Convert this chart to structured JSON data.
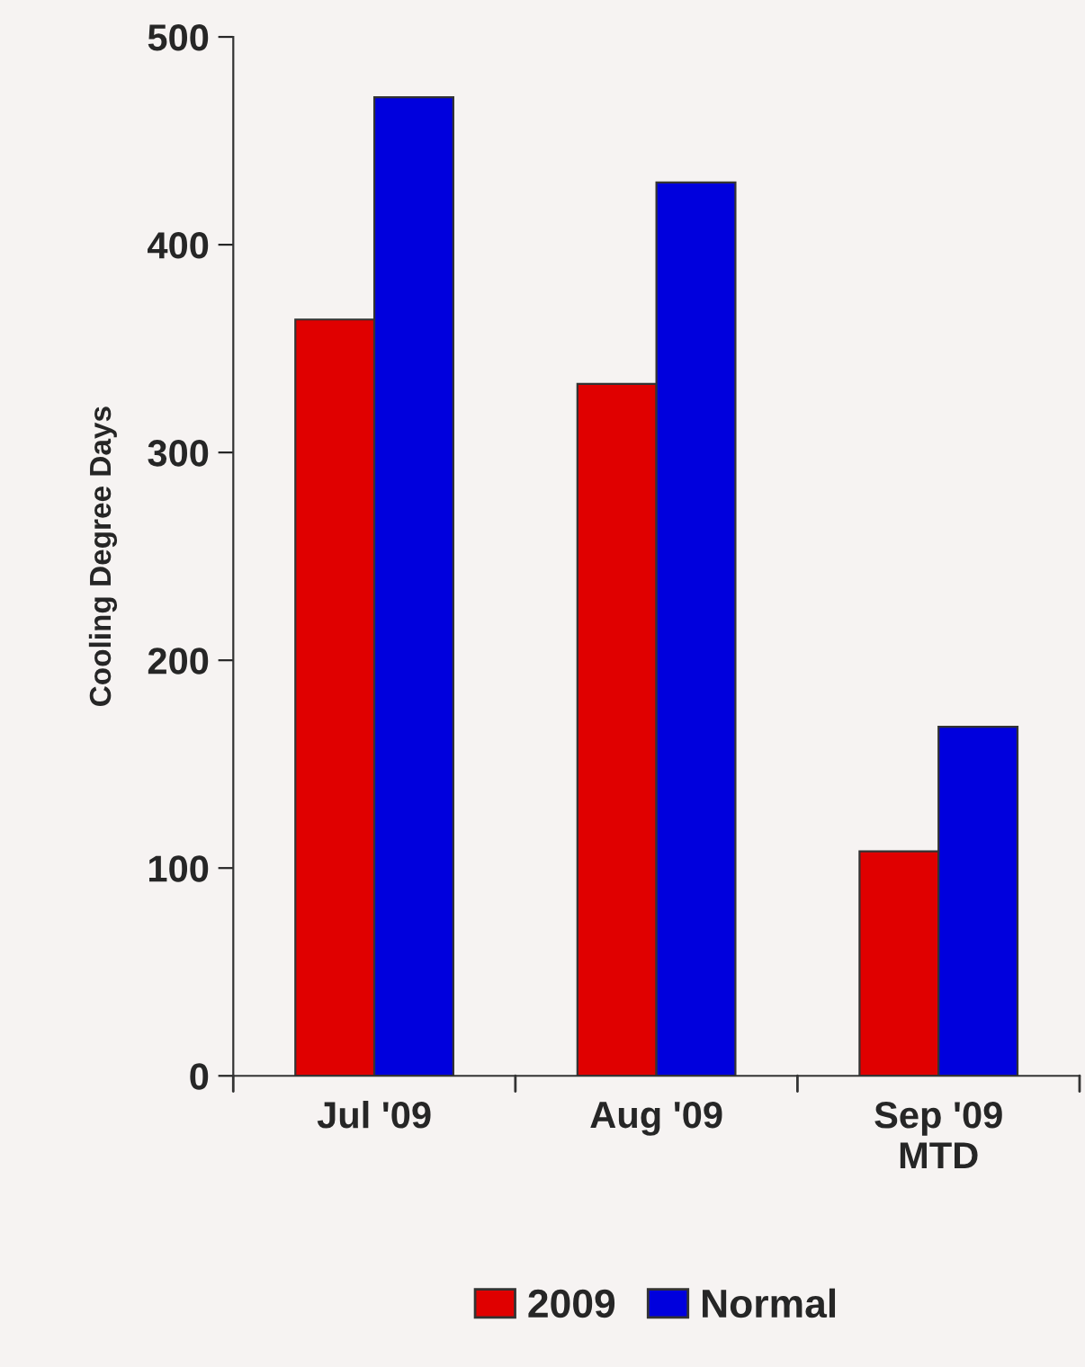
{
  "chart_data": {
    "type": "bar",
    "ylabel": "Cooling Degree Days",
    "categories": [
      "Jul '09",
      "Aug '09",
      "Sep '09\nMTD"
    ],
    "series": [
      {
        "name": "2009",
        "color": "#e00000",
        "values": [
          364,
          333,
          108
        ]
      },
      {
        "name": "Normal",
        "color": "#0000dd",
        "values": [
          471,
          430,
          168
        ]
      }
    ],
    "ylim": [
      0,
      500
    ],
    "yticks": [
      0,
      100,
      200,
      300,
      400,
      500
    ],
    "grid": false,
    "legend": "bottom"
  }
}
